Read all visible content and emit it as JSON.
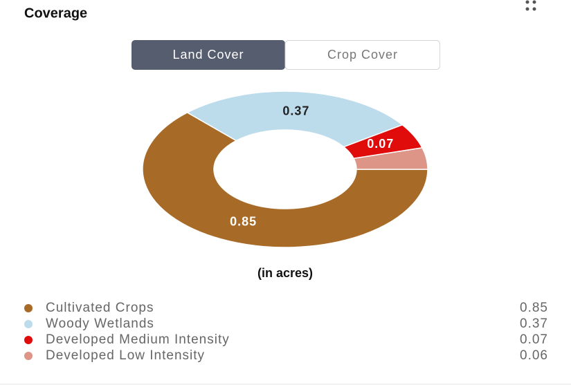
{
  "header": {
    "title": "Coverage"
  },
  "tabs": [
    "Land Cover",
    "Crop Cover"
  ],
  "chart_data": {
    "type": "donut",
    "categories": [
      "Cultivated Crops",
      "Woody Wetlands",
      "Developed Medium Intensity",
      "Developed Low Intensity"
    ],
    "values": [
      0.85,
      0.37,
      0.07,
      0.06
    ],
    "colors": [
      "#a86a27",
      "#bcdcec",
      "#e00b0b",
      "#dc9587"
    ],
    "annotation": "(in acres)"
  }
}
